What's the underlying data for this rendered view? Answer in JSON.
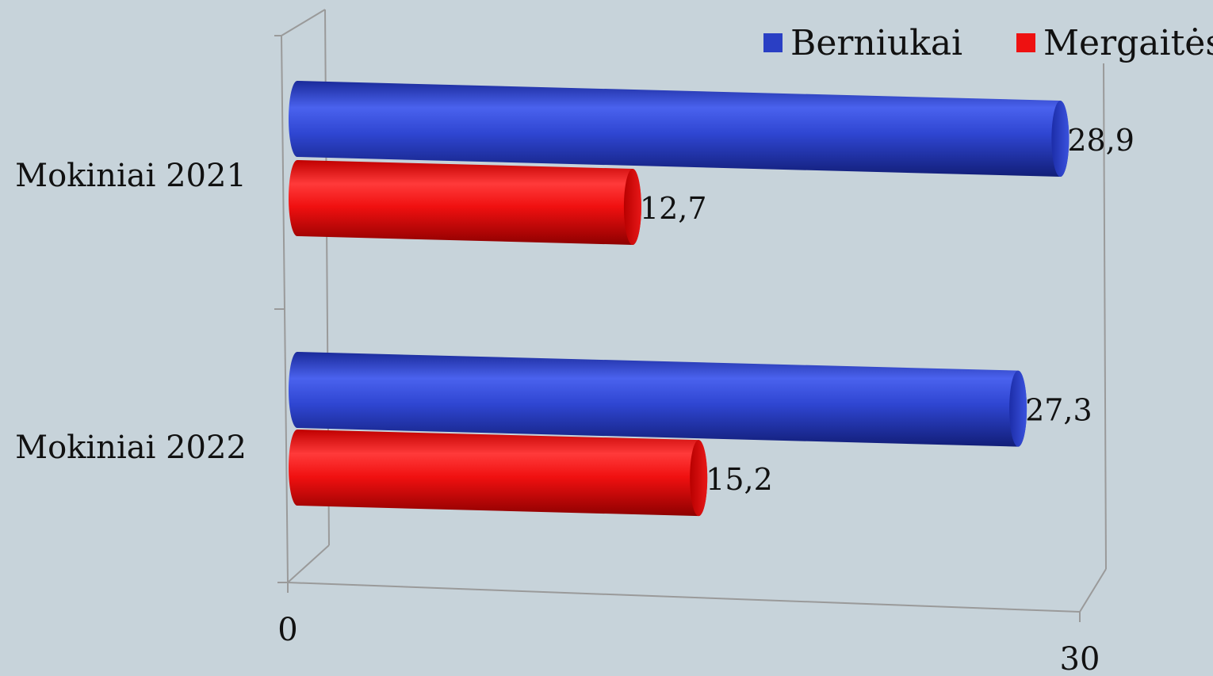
{
  "chart_data": {
    "type": "bar",
    "orientation": "horizontal",
    "style": "3d-cylinder",
    "categories": [
      "Mokiniai 2021",
      "Mokiniai 2022"
    ],
    "series": [
      {
        "name": "Berniukai",
        "color": "#2a3fc4",
        "values": [
          28.9,
          27.3
        ],
        "labels": [
          "28,9",
          "27,3"
        ]
      },
      {
        "name": "Mergaitės",
        "color": "#ee1111",
        "values": [
          12.7,
          15.2
        ],
        "labels": [
          "12,7",
          "15,2"
        ]
      }
    ],
    "xlim": [
      0,
      30
    ],
    "ticks": [
      {
        "value": 0,
        "label": "0"
      },
      {
        "value": 30,
        "label": "30"
      }
    ],
    "legend": "top-right",
    "grid": false
  }
}
